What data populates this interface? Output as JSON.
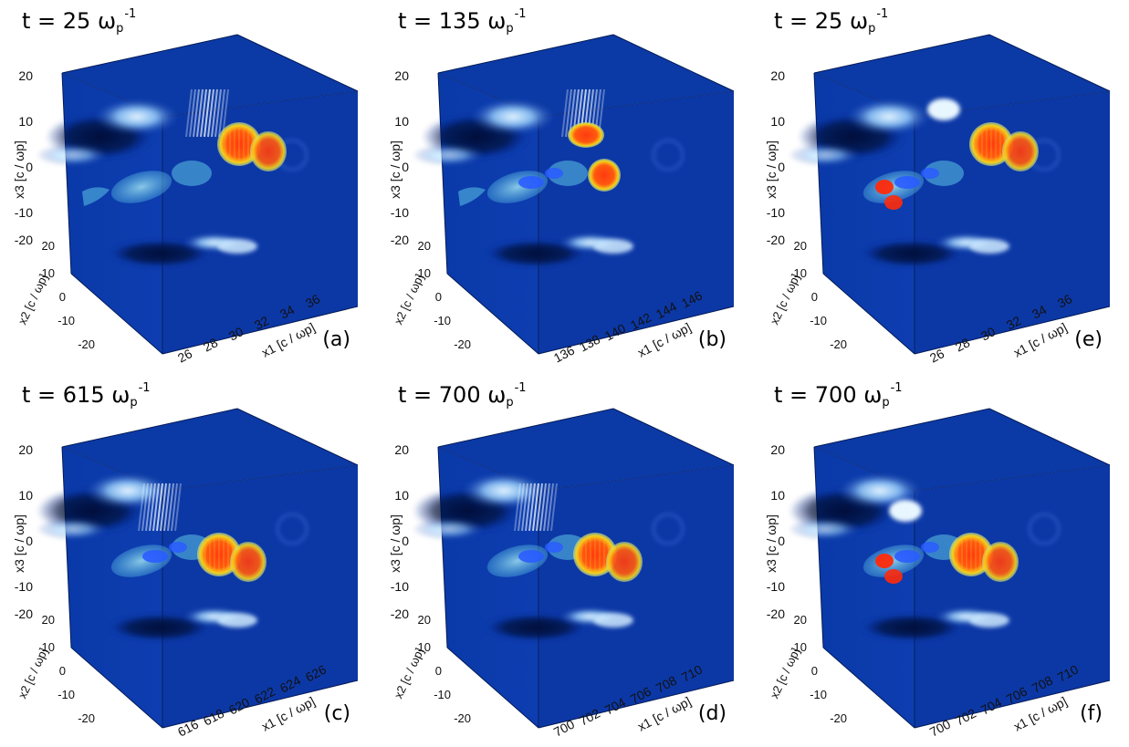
{
  "panels": [
    {
      "time_value": "25",
      "panel_label": "(a)",
      "x1_ticks": [
        "26",
        "28",
        "30",
        "32",
        "34",
        "36"
      ],
      "variant": "early",
      "bottom_color": "#0a0f30"
    },
    {
      "time_value": "135",
      "panel_label": "(b)",
      "x1_ticks": [
        "136",
        "138",
        "140",
        "142",
        "144",
        "146"
      ],
      "variant": "split",
      "bottom_color": "#0a0f30"
    },
    {
      "time_value": "615",
      "panel_label": "(c)",
      "x1_ticks": [
        "616",
        "618",
        "620",
        "622",
        "624",
        "626"
      ],
      "variant": "late",
      "bottom_color": "#0a0f30"
    },
    {
      "time_value": "700",
      "panel_label": "(d)",
      "x1_ticks": [
        "700",
        "702",
        "704",
        "706",
        "708",
        "710"
      ],
      "variant": "late2",
      "bottom_color": "#0a0f30"
    },
    {
      "time_value": "25",
      "panel_label": "(e)",
      "x1_ticks": [
        "26",
        "28",
        "30",
        "32",
        "34",
        "36"
      ],
      "variant": "early_e",
      "bottom_color": "#0a0f30"
    },
    {
      "time_value": "700",
      "panel_label": "(f)",
      "x1_ticks": [
        "700",
        "702",
        "704",
        "706",
        "708",
        "710"
      ],
      "variant": "late_f",
      "bottom_color": "#0a0f30"
    }
  ],
  "time_prefix": "t = ",
  "time_unit_symbol": "ω",
  "time_unit_sub": "p",
  "time_unit_sup": "-1",
  "axes": {
    "x3_label": "x3 [c / ωp]",
    "x2_label": "x2 [c / ωp]",
    "x1_label": "x1 [c / ωp]",
    "x3_ticks": [
      "20",
      "10",
      "0",
      "-10",
      "-20"
    ],
    "x2_ticks": [
      "20",
      "10",
      "0",
      "-10",
      "-20"
    ]
  },
  "colors": {
    "box_blue": "#0b35a8",
    "box_blue_dark": "#072a8a",
    "plasma_light": "#9fd6ff",
    "plasma_dark": "#03113a",
    "beam_orange": "#ff5a10",
    "beam_yellow": "#f4d21a",
    "electron_cyan": "#5cc3e6",
    "electron_blue": "#2a5cff"
  }
}
